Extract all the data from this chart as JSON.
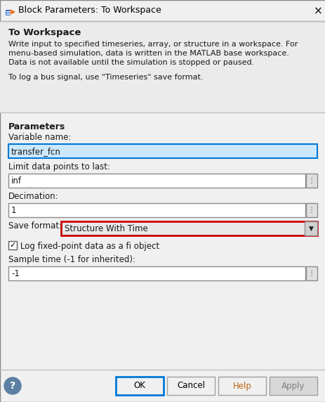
{
  "title_bar_text": "Block Parameters: To Workspace",
  "dialog_bg": "#f0f0f0",
  "content_bg": "#f0f0f0",
  "section_title": "To Workspace",
  "description_lines": [
    "Write input to specified timeseries, array, or structure in a workspace. For",
    "menu-based simulation, data is written in the MATLAB base workspace.",
    "Data is not available until the simulation is stopped or paused."
  ],
  "bus_note": "To log a bus signal, use \"Timeseries\" save format.",
  "params_label": "Parameters",
  "fields": [
    {
      "label": "Variable name:",
      "value": "transfer_fcn",
      "has_dots": false,
      "highlighted": true
    },
    {
      "label": "Limit data points to last:",
      "value": "inf",
      "has_dots": true,
      "highlighted": false
    },
    {
      "label": "Decimation:",
      "value": "1",
      "has_dots": true,
      "highlighted": false
    }
  ],
  "save_format_label": "Save format:",
  "save_format_value": "Structure With Time",
  "checkbox_label": "Log fixed-point data as a fi object",
  "checkbox_checked": true,
  "sample_time_label": "Sample time (-1 for inherited):",
  "sample_time_value": "-1",
  "buttons": [
    "OK",
    "Cancel",
    "Help",
    "Apply"
  ],
  "field_bg": "#ffffff",
  "field_bg_gray": "#e8e8e8",
  "field_highlighted_bg": "#cce8ff",
  "field_highlighted_border": "#0078d7",
  "ok_border_color": "#0078d7",
  "red_border_color": "#cc0000",
  "separator_color": "#c0c0c0",
  "title_text_color": "#1f3864",
  "label_color": "#1a1a1a",
  "help_btn_color": "#5c7fa3",
  "help_text_color": "#ffffff"
}
